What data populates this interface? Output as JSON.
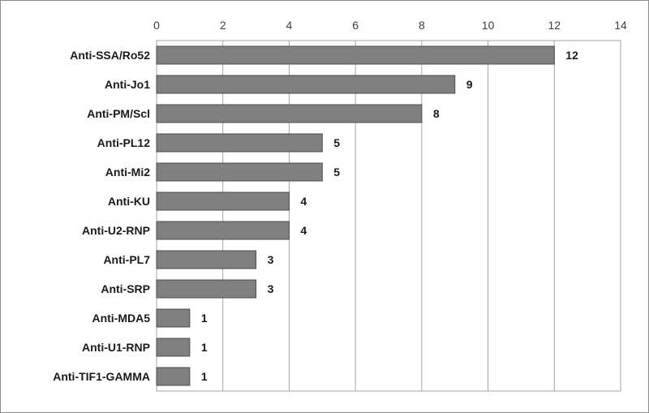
{
  "chart_data": {
    "type": "bar",
    "orientation": "horizontal",
    "title": "",
    "xlabel": "",
    "ylabel": "",
    "xlim": [
      0,
      14
    ],
    "ticks": [
      0,
      2,
      4,
      6,
      8,
      10,
      12,
      14
    ],
    "tick_position": "top",
    "grid": true,
    "legend": "none",
    "bar_color": "#808080",
    "categories": [
      "Anti-SSA/Ro52",
      "Anti-Jo1",
      "Anti-PM/Scl",
      "Anti-PL12",
      "Anti-Mi2",
      "Anti-KU",
      "Anti-U2-RNP",
      "Anti-PL7",
      "Anti-SRP",
      "Anti-MDA5",
      "Anti-U1-RNP",
      "Anti-TIF1-GAMMA"
    ],
    "values": [
      12,
      9,
      8,
      5,
      5,
      4,
      4,
      3,
      3,
      1,
      1,
      1
    ],
    "data_labels": [
      "12",
      "9",
      "8",
      "5",
      "5",
      "4",
      "4",
      "3",
      "3",
      "1",
      "1",
      "1"
    ]
  }
}
